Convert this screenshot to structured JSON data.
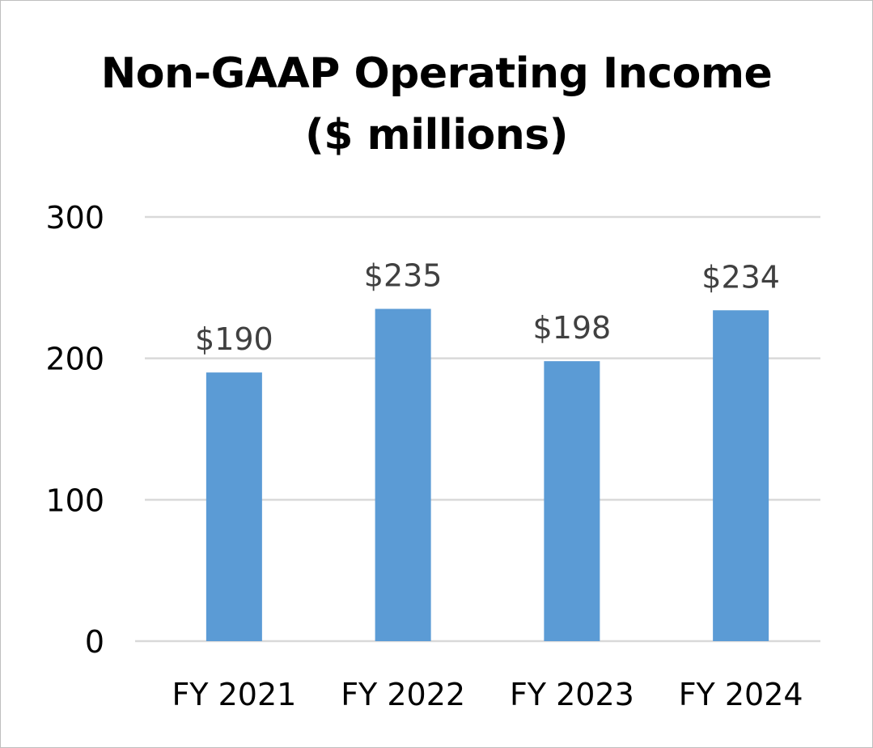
{
  "chart_data": {
    "type": "bar",
    "title_line1": "Non-GAAP Operating Income",
    "title_line2": "($ millions)",
    "categories": [
      "FY 2021",
      "FY 2022",
      "FY 2023",
      "FY 2024"
    ],
    "values": [
      190,
      235,
      198,
      234
    ],
    "data_labels": [
      "$190",
      "$235",
      "$198",
      "$234"
    ],
    "xlabel": "",
    "ylabel": "",
    "ylim": [
      0,
      300
    ],
    "yticks": [
      0,
      100,
      200,
      300
    ],
    "ytick_labels": [
      "0",
      "100",
      "200",
      "300"
    ],
    "grid": true,
    "legend": "none",
    "bar_color": "#5b9bd5",
    "grid_color": "#d9d9d9",
    "label_color": "#404040"
  }
}
